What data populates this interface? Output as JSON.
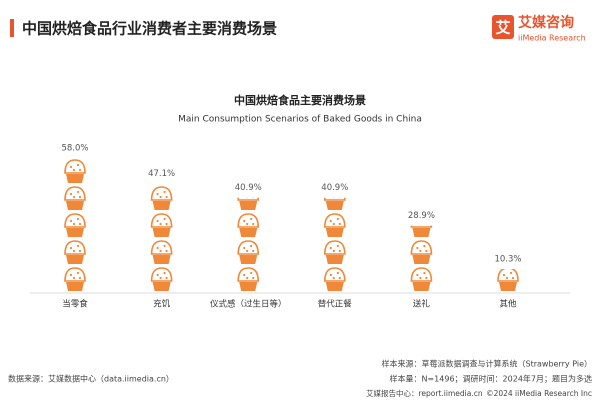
{
  "header": {
    "title": "中国烘焙食品行业消费者主要消费场景"
  },
  "logo": {
    "name": "艾媒咨询",
    "sub": "iiMedia Research",
    "mark": "艾"
  },
  "chart_data": {
    "type": "pictograph",
    "title": "中国烘焙食品主要消费场景",
    "subtitle": "Main Consumption Scenarios of Baked Goods in China",
    "categories": [
      "当零食",
      "充饥",
      "仪式感（过生日等）",
      "替代正餐",
      "送礼",
      "其他"
    ],
    "values": [
      58.0,
      47.1,
      40.9,
      40.9,
      28.9,
      10.3
    ],
    "value_labels": [
      "58.0%",
      "47.1%",
      "40.9%",
      "40.9%",
      "28.9%",
      "10.3%"
    ],
    "color": "#f0883a"
  },
  "footer": {
    "source": "样本来源：草莓派数据调查与计算系统（Strawberry Pie）",
    "sample": "样本量：N=1496；调研时间：2024年7月；题目为多选",
    "data_source": "数据来源：艾媒数据中心（data.iimedia.cn）",
    "report": "艾媒报告中心：report.iimedia.cn",
    "copyright": "©2024 iiMedia Research Inc"
  }
}
